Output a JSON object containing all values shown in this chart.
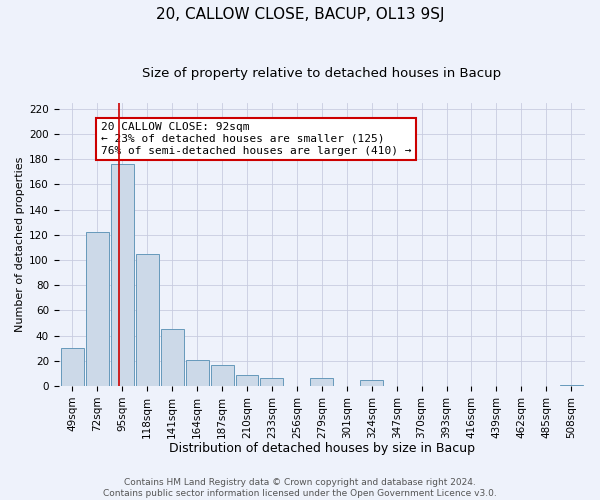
{
  "title": "20, CALLOW CLOSE, BACUP, OL13 9SJ",
  "subtitle": "Size of property relative to detached houses in Bacup",
  "xlabel": "Distribution of detached houses by size in Bacup",
  "ylabel": "Number of detached properties",
  "bin_labels": [
    "49sqm",
    "72sqm",
    "95sqm",
    "118sqm",
    "141sqm",
    "164sqm",
    "187sqm",
    "210sqm",
    "233sqm",
    "256sqm",
    "279sqm",
    "301sqm",
    "324sqm",
    "347sqm",
    "370sqm",
    "393sqm",
    "416sqm",
    "439sqm",
    "462sqm",
    "485sqm",
    "508sqm"
  ],
  "bar_heights": [
    30,
    122,
    176,
    105,
    45,
    21,
    17,
    9,
    6,
    0,
    6,
    0,
    5,
    0,
    0,
    0,
    0,
    0,
    0,
    0,
    1
  ],
  "bar_color": "#ccd9e8",
  "bar_edge_color": "#6699bb",
  "background_color": "#eef2fb",
  "grid_color": "#c8cce0",
  "ylim": [
    0,
    225
  ],
  "yticks": [
    0,
    20,
    40,
    60,
    80,
    100,
    120,
    140,
    160,
    180,
    200,
    220
  ],
  "annotation_text": "20 CALLOW CLOSE: 92sqm\n← 23% of detached houses are smaller (125)\n76% of semi-detached houses are larger (410) →",
  "annotation_box_color": "white",
  "annotation_box_edgecolor": "#cc0000",
  "redline_color": "#cc0000",
  "footer_line1": "Contains HM Land Registry data © Crown copyright and database right 2024.",
  "footer_line2": "Contains public sector information licensed under the Open Government Licence v3.0.",
  "title_fontsize": 11,
  "subtitle_fontsize": 9.5,
  "xlabel_fontsize": 9,
  "ylabel_fontsize": 8,
  "tick_fontsize": 7.5,
  "annotation_fontsize": 8,
  "footer_fontsize": 6.5
}
